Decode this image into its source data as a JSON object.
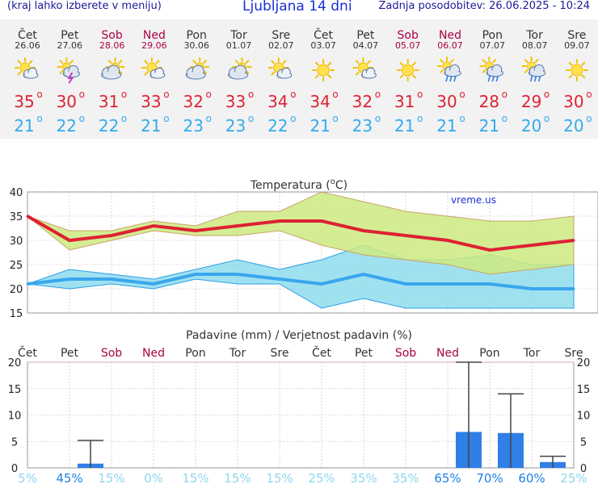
{
  "header": {
    "menu_hint": "(kraj lahko izberete v meniju)",
    "title": "Ljubljana 14 dni",
    "updated": "Zadnja posodobitev: 26.06.2025 - 10:24"
  },
  "days": [
    {
      "name": "Čet",
      "date": "26.06",
      "weekend": false,
      "icon": "sun-cloud-icon",
      "tmax": 35,
      "tmin": 21
    },
    {
      "name": "Pet",
      "date": "27.06",
      "weekend": false,
      "icon": "thunderstorm-icon",
      "tmax": 30,
      "tmin": 22
    },
    {
      "name": "Sob",
      "date": "28.06",
      "weekend": true,
      "icon": "cloud-sun-icon",
      "tmax": 31,
      "tmin": 22
    },
    {
      "name": "Ned",
      "date": "29.06",
      "weekend": true,
      "icon": "sun-cloud-icon",
      "tmax": 33,
      "tmin": 21
    },
    {
      "name": "Pon",
      "date": "30.06",
      "weekend": false,
      "icon": "cloud-sun-icon",
      "tmax": 32,
      "tmin": 23
    },
    {
      "name": "Tor",
      "date": "01.07",
      "weekend": false,
      "icon": "cloud-sun-icon",
      "tmax": 33,
      "tmin": 23
    },
    {
      "name": "Sre",
      "date": "02.07",
      "weekend": false,
      "icon": "sun-cloud-icon",
      "tmax": 34,
      "tmin": 22
    },
    {
      "name": "Čet",
      "date": "03.07",
      "weekend": false,
      "icon": "sun-icon",
      "tmax": 34,
      "tmin": 21
    },
    {
      "name": "Pet",
      "date": "04.07",
      "weekend": false,
      "icon": "sun-cloud-icon",
      "tmax": 32,
      "tmin": 23
    },
    {
      "name": "Sob",
      "date": "05.07",
      "weekend": true,
      "icon": "sun-icon",
      "tmax": 31,
      "tmin": 21
    },
    {
      "name": "Ned",
      "date": "06.07",
      "weekend": true,
      "icon": "sun-rain-icon",
      "tmax": 30,
      "tmin": 21
    },
    {
      "name": "Pon",
      "date": "07.07",
      "weekend": false,
      "icon": "sun-rain-icon",
      "tmax": 28,
      "tmin": 21
    },
    {
      "name": "Tor",
      "date": "08.07",
      "weekend": false,
      "icon": "sun-rain-icon",
      "tmax": 29,
      "tmin": 20
    },
    {
      "name": "Sre",
      "date": "09.07",
      "weekend": false,
      "icon": "sun-icon",
      "tmax": 30,
      "tmin": 20
    }
  ],
  "colors": {
    "weekday": "#333333",
    "weekend": "#aa0044",
    "max": "#dd2233",
    "min": "#33aaee",
    "max_band": "#ccea80",
    "min_band": "#8fdced",
    "overlap": "#7ccc99",
    "bar": "#2f7fe6",
    "pct_high": "#1f7fe6",
    "pct_low": "#8fd5ee"
  },
  "chart_data": [
    {
      "type": "line",
      "title": "Temperatura (°C)",
      "title_pre": "Temperatura (",
      "title_sup": "o",
      "title_post": "C)",
      "watermark": "vreme.us",
      "ylim": [
        15,
        40
      ],
      "yticks": [
        "15",
        "20",
        "25",
        "30",
        "35",
        "40"
      ],
      "x": [
        "26.06",
        "27.06",
        "28.06",
        "29.06",
        "30.06",
        "01.07",
        "02.07",
        "03.07",
        "04.07",
        "05.07",
        "06.07",
        "07.07",
        "08.07",
        "09.07"
      ],
      "series": [
        {
          "name": "max",
          "values": [
            35,
            30,
            31,
            33,
            32,
            33,
            34,
            34,
            32,
            31,
            30,
            28,
            29,
            30
          ],
          "low": [
            35,
            28,
            30,
            32,
            31,
            31,
            32,
            29,
            27,
            26,
            25,
            23,
            24,
            25
          ],
          "high": [
            35,
            32,
            32,
            34,
            33,
            36,
            36,
            40,
            38,
            36,
            35,
            34,
            34,
            35
          ]
        },
        {
          "name": "min",
          "values": [
            21,
            22,
            22,
            21,
            23,
            23,
            22,
            21,
            23,
            21,
            21,
            21,
            20,
            20
          ],
          "low": [
            21,
            20,
            21,
            20,
            22,
            21,
            21,
            16,
            18,
            16,
            16,
            16,
            16,
            16
          ],
          "high": [
            21,
            24,
            23,
            22,
            24,
            26,
            24,
            26,
            29,
            26,
            26,
            27,
            25,
            25
          ]
        }
      ]
    },
    {
      "type": "bar",
      "title": "Padavine (mm) / Verjetnost padavin (%)",
      "ylim": [
        0,
        20
      ],
      "yticks": [
        "0",
        "5",
        "10",
        "15",
        "20"
      ],
      "categories": [
        "Čet",
        "Pet",
        "Sob",
        "Ned",
        "Pon",
        "Tor",
        "Sre",
        "Čet",
        "Pet",
        "Sob",
        "Ned",
        "Pon",
        "Tor",
        "Sre"
      ],
      "values": [
        0,
        0.8,
        0,
        0,
        0,
        0,
        0,
        0,
        0,
        0,
        6.8,
        6.6,
        1.1,
        0
      ],
      "error_max": [
        0,
        5.2,
        0,
        0,
        0,
        0,
        0,
        0,
        0,
        0,
        20,
        14,
        2.2,
        0
      ],
      "probability": [
        "5%",
        "45%",
        "15%",
        "0%",
        "15%",
        "15%",
        "15%",
        "25%",
        "35%",
        "35%",
        "65%",
        "70%",
        "60%",
        "25%"
      ]
    }
  ]
}
